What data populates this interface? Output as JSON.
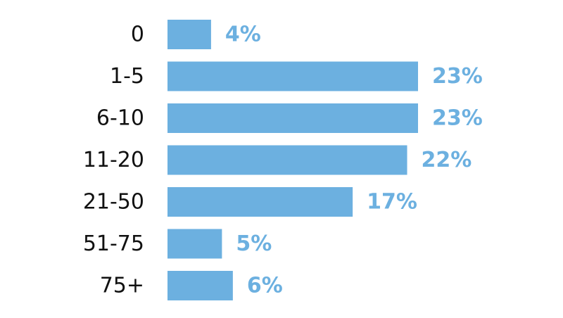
{
  "chart_data": {
    "type": "bar",
    "orientation": "horizontal",
    "categories": [
      "0",
      "1-5",
      "6-10",
      "11-20",
      "21-50",
      "51-75",
      "75+"
    ],
    "values": [
      4,
      23,
      23,
      22,
      17,
      5,
      6
    ],
    "value_labels": [
      "4%",
      "23%",
      "23%",
      "22%",
      "17%",
      "5%",
      "6%"
    ],
    "unit": "%",
    "title": "",
    "xlabel": "",
    "ylabel": "",
    "xlim": [
      0,
      23
    ],
    "grid": false,
    "legend": "none",
    "bar_color": "#6cb0e0",
    "label_color": "#6cb0e0"
  }
}
